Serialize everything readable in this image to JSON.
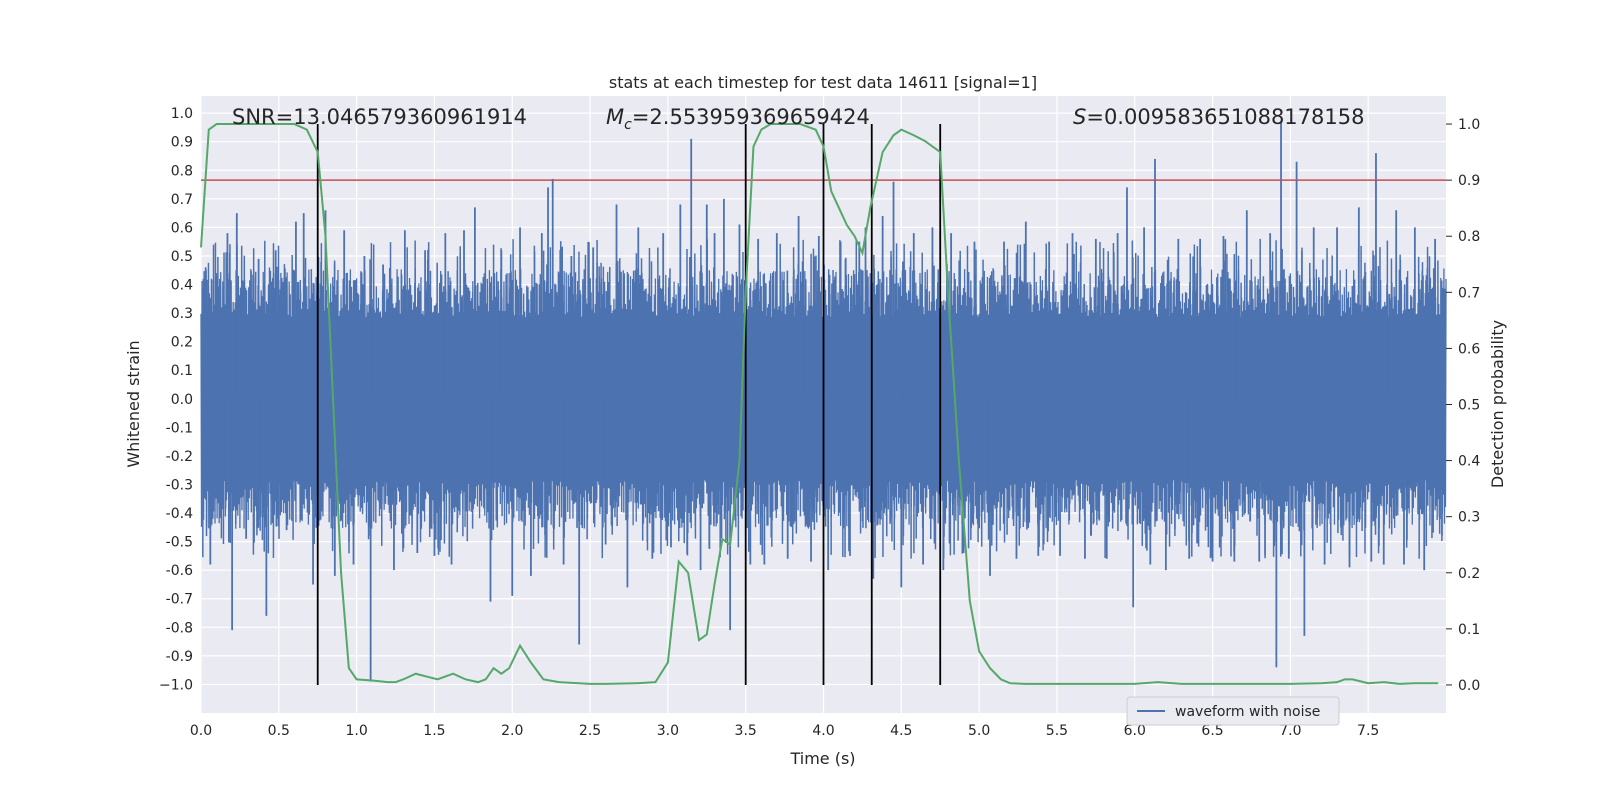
{
  "chart_data": {
    "type": "line",
    "title": "stats at each timestep for test data 14611 [signal=1]",
    "xlabel": "Time (s)",
    "ylabel_left": "Whitened strain",
    "ylabel_right": "Detection probability",
    "xlim": [
      0.0,
      8.0
    ],
    "ylim_left": [
      -1.1,
      1.06
    ],
    "ylim_right": [
      -0.05,
      1.05
    ],
    "x_ticks": [
      0.0,
      0.5,
      1.0,
      1.5,
      2.0,
      2.5,
      3.0,
      3.5,
      4.0,
      4.5,
      5.0,
      5.5,
      6.0,
      6.5,
      7.0,
      7.5
    ],
    "x_tick_labels": [
      "0.0",
      "0.5",
      "1.0",
      "1.5",
      "2.0",
      "2.5",
      "3.0",
      "3.5",
      "4.0",
      "4.5",
      "5.0",
      "5.5",
      "6.0",
      "6.5",
      "7.0",
      "7.5"
    ],
    "y_left_ticks": [
      1.0,
      0.9,
      0.8,
      0.7,
      0.6,
      0.5,
      0.4,
      0.3,
      0.2,
      0.1,
      0.0,
      -0.1,
      -0.2,
      -0.3,
      -0.4,
      -0.5,
      -0.6,
      -0.7,
      -0.8,
      -0.9,
      -1.0
    ],
    "y_left_tick_labels": [
      "1.0",
      "0.9",
      "0.8",
      "0.7",
      "0.6",
      "0.5",
      "0.4",
      "0.3",
      "0.2",
      "0.1",
      "0.0",
      "-0.1",
      "-0.2",
      "-0.3",
      "-0.4",
      "-0.5",
      "-0.6",
      "-0.7",
      "-0.8",
      "-0.9",
      "−1.0"
    ],
    "y_right_ticks": [
      1.0,
      0.9,
      0.8,
      0.7,
      0.6,
      0.5,
      0.4,
      0.3,
      0.2,
      0.1,
      0.0
    ],
    "y_right_tick_labels": [
      "1.0",
      "0.9",
      "0.8",
      "0.7",
      "0.6",
      "0.5",
      "0.4",
      "0.3",
      "0.2",
      "0.1",
      "0.0"
    ],
    "grid": true,
    "annotations": {
      "snr": "SNR=13.046579360961914",
      "mc_symbol": "M",
      "mc_sub": "c",
      "mc_value": "=2.553959369659424",
      "s_symbol": "S",
      "s_value": "=0.009583651088178158"
    },
    "threshold": {
      "y_right": 0.9,
      "color": "#c44e52"
    },
    "vertical_lines": [
      0.75,
      3.5,
      4.0,
      4.31,
      4.75
    ],
    "waveform": {
      "name": "waveform with noise",
      "color": "#4c72b0",
      "core_amplitude": 0.38,
      "peaks": [
        {
          "x": 0.03,
          "y": 0.46
        },
        {
          "x": 0.06,
          "y": -0.58
        },
        {
          "x": 0.17,
          "y": 0.58
        },
        {
          "x": 0.2,
          "y": -0.81
        },
        {
          "x": 0.23,
          "y": 0.65
        },
        {
          "x": 0.29,
          "y": -0.49
        },
        {
          "x": 0.37,
          "y": 0.49
        },
        {
          "x": 0.42,
          "y": -0.76
        },
        {
          "x": 0.48,
          "y": 0.52
        },
        {
          "x": 0.55,
          "y": -0.46
        },
        {
          "x": 0.61,
          "y": 0.62
        },
        {
          "x": 0.66,
          "y": 0.65
        },
        {
          "x": 0.72,
          "y": -0.65
        },
        {
          "x": 0.8,
          "y": 0.66
        },
        {
          "x": 0.86,
          "y": -0.62
        },
        {
          "x": 0.92,
          "y": 0.59
        },
        {
          "x": 0.98,
          "y": -0.58
        },
        {
          "x": 1.05,
          "y": 0.5
        },
        {
          "x": 1.09,
          "y": -0.99
        },
        {
          "x": 1.17,
          "y": 0.47
        },
        {
          "x": 1.24,
          "y": -0.6
        },
        {
          "x": 1.31,
          "y": 0.59
        },
        {
          "x": 1.39,
          "y": -0.54
        },
        {
          "x": 1.44,
          "y": 0.52
        },
        {
          "x": 1.5,
          "y": -0.55
        },
        {
          "x": 1.57,
          "y": 0.58
        },
        {
          "x": 1.61,
          "y": -0.58
        },
        {
          "x": 1.69,
          "y": 0.59
        },
        {
          "x": 1.76,
          "y": 0.67
        },
        {
          "x": 1.86,
          "y": -0.71
        },
        {
          "x": 1.93,
          "y": 0.52
        },
        {
          "x": 2.0,
          "y": -0.69
        },
        {
          "x": 2.05,
          "y": 0.6
        },
        {
          "x": 2.12,
          "y": -0.62
        },
        {
          "x": 2.19,
          "y": 0.58
        },
        {
          "x": 2.23,
          "y": 0.74
        },
        {
          "x": 2.26,
          "y": 0.77
        },
        {
          "x": 2.33,
          "y": -0.58
        },
        {
          "x": 2.38,
          "y": 0.5
        },
        {
          "x": 2.43,
          "y": -0.86
        },
        {
          "x": 2.52,
          "y": 0.53
        },
        {
          "x": 2.6,
          "y": -0.51
        },
        {
          "x": 2.67,
          "y": 0.68
        },
        {
          "x": 2.74,
          "y": -0.66
        },
        {
          "x": 2.81,
          "y": 0.6
        },
        {
          "x": 2.9,
          "y": -0.56
        },
        {
          "x": 2.97,
          "y": 0.58
        },
        {
          "x": 3.02,
          "y": -0.52
        },
        {
          "x": 3.08,
          "y": 0.68
        },
        {
          "x": 3.15,
          "y": 0.91
        },
        {
          "x": 3.21,
          "y": -0.6
        },
        {
          "x": 3.25,
          "y": 0.68
        },
        {
          "x": 3.3,
          "y": 0.58
        },
        {
          "x": 3.36,
          "y": 0.7
        },
        {
          "x": 3.4,
          "y": -0.81
        },
        {
          "x": 3.46,
          "y": 0.61
        },
        {
          "x": 3.53,
          "y": -0.58
        },
        {
          "x": 3.58,
          "y": 0.56
        },
        {
          "x": 3.62,
          "y": -0.58
        },
        {
          "x": 3.7,
          "y": 0.58
        },
        {
          "x": 3.77,
          "y": -0.56
        },
        {
          "x": 3.84,
          "y": 0.64
        },
        {
          "x": 3.92,
          "y": -0.57
        },
        {
          "x": 3.97,
          "y": 0.57
        },
        {
          "x": 4.03,
          "y": -0.6
        },
        {
          "x": 4.11,
          "y": 0.55
        },
        {
          "x": 4.17,
          "y": -0.55
        },
        {
          "x": 4.23,
          "y": 0.55
        },
        {
          "x": 4.27,
          "y": 0.6
        },
        {
          "x": 4.32,
          "y": -0.63
        },
        {
          "x": 4.38,
          "y": 0.64
        },
        {
          "x": 4.45,
          "y": 0.76
        },
        {
          "x": 4.5,
          "y": -0.66
        },
        {
          "x": 4.58,
          "y": 0.58
        },
        {
          "x": 4.64,
          "y": -0.58
        },
        {
          "x": 4.7,
          "y": 0.6
        },
        {
          "x": 4.77,
          "y": -0.6
        },
        {
          "x": 4.82,
          "y": 0.58
        },
        {
          "x": 4.9,
          "y": -0.54
        },
        {
          "x": 4.97,
          "y": 0.55
        },
        {
          "x": 5.07,
          "y": -0.62
        },
        {
          "x": 5.16,
          "y": 0.55
        },
        {
          "x": 5.24,
          "y": -0.56
        },
        {
          "x": 5.3,
          "y": 0.62
        },
        {
          "x": 5.38,
          "y": -0.55
        },
        {
          "x": 5.45,
          "y": 0.55
        },
        {
          "x": 5.52,
          "y": -0.55
        },
        {
          "x": 5.6,
          "y": 0.58
        },
        {
          "x": 5.68,
          "y": -0.56
        },
        {
          "x": 5.75,
          "y": 0.56
        },
        {
          "x": 5.82,
          "y": -0.56
        },
        {
          "x": 5.89,
          "y": 0.58
        },
        {
          "x": 5.95,
          "y": 0.74
        },
        {
          "x": 5.99,
          "y": -0.73
        },
        {
          "x": 6.06,
          "y": 0.6
        },
        {
          "x": 6.1,
          "y": -0.58
        },
        {
          "x": 6.13,
          "y": 0.84
        },
        {
          "x": 6.2,
          "y": -0.6
        },
        {
          "x": 6.28,
          "y": 0.56
        },
        {
          "x": 6.35,
          "y": -0.56
        },
        {
          "x": 6.42,
          "y": 0.56
        },
        {
          "x": 6.5,
          "y": -0.57
        },
        {
          "x": 6.57,
          "y": 0.57
        },
        {
          "x": 6.64,
          "y": -0.57
        },
        {
          "x": 6.72,
          "y": 0.66
        },
        {
          "x": 6.8,
          "y": -0.57
        },
        {
          "x": 6.87,
          "y": 0.58
        },
        {
          "x": 6.91,
          "y": -0.94
        },
        {
          "x": 6.94,
          "y": 0.97
        },
        {
          "x": 6.99,
          "y": -0.56
        },
        {
          "x": 7.04,
          "y": 0.83
        },
        {
          "x": 7.09,
          "y": -0.83
        },
        {
          "x": 7.15,
          "y": 0.6
        },
        {
          "x": 7.22,
          "y": -0.58
        },
        {
          "x": 7.3,
          "y": 0.6
        },
        {
          "x": 7.38,
          "y": -0.59
        },
        {
          "x": 7.44,
          "y": 0.67
        },
        {
          "x": 7.52,
          "y": -0.57
        },
        {
          "x": 7.55,
          "y": 0.86
        },
        {
          "x": 7.6,
          "y": -0.58
        },
        {
          "x": 7.68,
          "y": 0.66
        },
        {
          "x": 7.73,
          "y": -0.58
        },
        {
          "x": 7.8,
          "y": 0.6
        },
        {
          "x": 7.86,
          "y": -0.6
        },
        {
          "x": 7.93,
          "y": 0.56
        }
      ]
    },
    "probability": {
      "color": "#55a868",
      "x": [
        0.0,
        0.05,
        0.1,
        0.15,
        0.2,
        0.3,
        0.4,
        0.5,
        0.6,
        0.68,
        0.75,
        0.8,
        0.85,
        0.9,
        0.95,
        1.0,
        1.1,
        1.2,
        1.25,
        1.3,
        1.38,
        1.45,
        1.52,
        1.62,
        1.7,
        1.78,
        1.83,
        1.88,
        1.93,
        1.98,
        2.05,
        2.12,
        2.2,
        2.3,
        2.5,
        2.6,
        2.8,
        2.92,
        3.0,
        3.07,
        3.13,
        3.2,
        3.25,
        3.3,
        3.35,
        3.4,
        3.46,
        3.5,
        3.55,
        3.6,
        3.66,
        3.75,
        3.85,
        3.95,
        4.0,
        4.05,
        4.1,
        4.15,
        4.2,
        4.25,
        4.3,
        4.38,
        4.45,
        4.5,
        4.58,
        4.65,
        4.75,
        4.8,
        4.87,
        4.94,
        5.0,
        5.07,
        5.14,
        5.2,
        5.3,
        5.5,
        6.0,
        6.15,
        6.3,
        6.5,
        7.0,
        7.2,
        7.3,
        7.35,
        7.4,
        7.5,
        7.6,
        7.7,
        7.8,
        7.95
      ],
      "y": [
        0.78,
        0.99,
        1.0,
        1.0,
        1.0,
        1.0,
        1.0,
        1.0,
        1.0,
        0.99,
        0.95,
        0.8,
        0.5,
        0.2,
        0.03,
        0.01,
        0.008,
        0.005,
        0.005,
        0.01,
        0.02,
        0.015,
        0.01,
        0.02,
        0.01,
        0.005,
        0.01,
        0.03,
        0.02,
        0.03,
        0.07,
        0.04,
        0.01,
        0.005,
        0.002,
        0.002,
        0.003,
        0.005,
        0.04,
        0.22,
        0.2,
        0.08,
        0.09,
        0.18,
        0.26,
        0.25,
        0.4,
        0.7,
        0.96,
        0.99,
        1.0,
        1.0,
        1.0,
        0.99,
        0.96,
        0.88,
        0.85,
        0.82,
        0.8,
        0.77,
        0.85,
        0.95,
        0.98,
        0.99,
        0.98,
        0.97,
        0.95,
        0.7,
        0.4,
        0.15,
        0.06,
        0.03,
        0.01,
        0.003,
        0.002,
        0.002,
        0.002,
        0.005,
        0.002,
        0.002,
        0.002,
        0.003,
        0.005,
        0.01,
        0.01,
        0.003,
        0.005,
        0.002,
        0.003,
        0.003
      ]
    },
    "legend": {
      "location": "lower-right",
      "entries": [
        "waveform with noise"
      ]
    }
  }
}
